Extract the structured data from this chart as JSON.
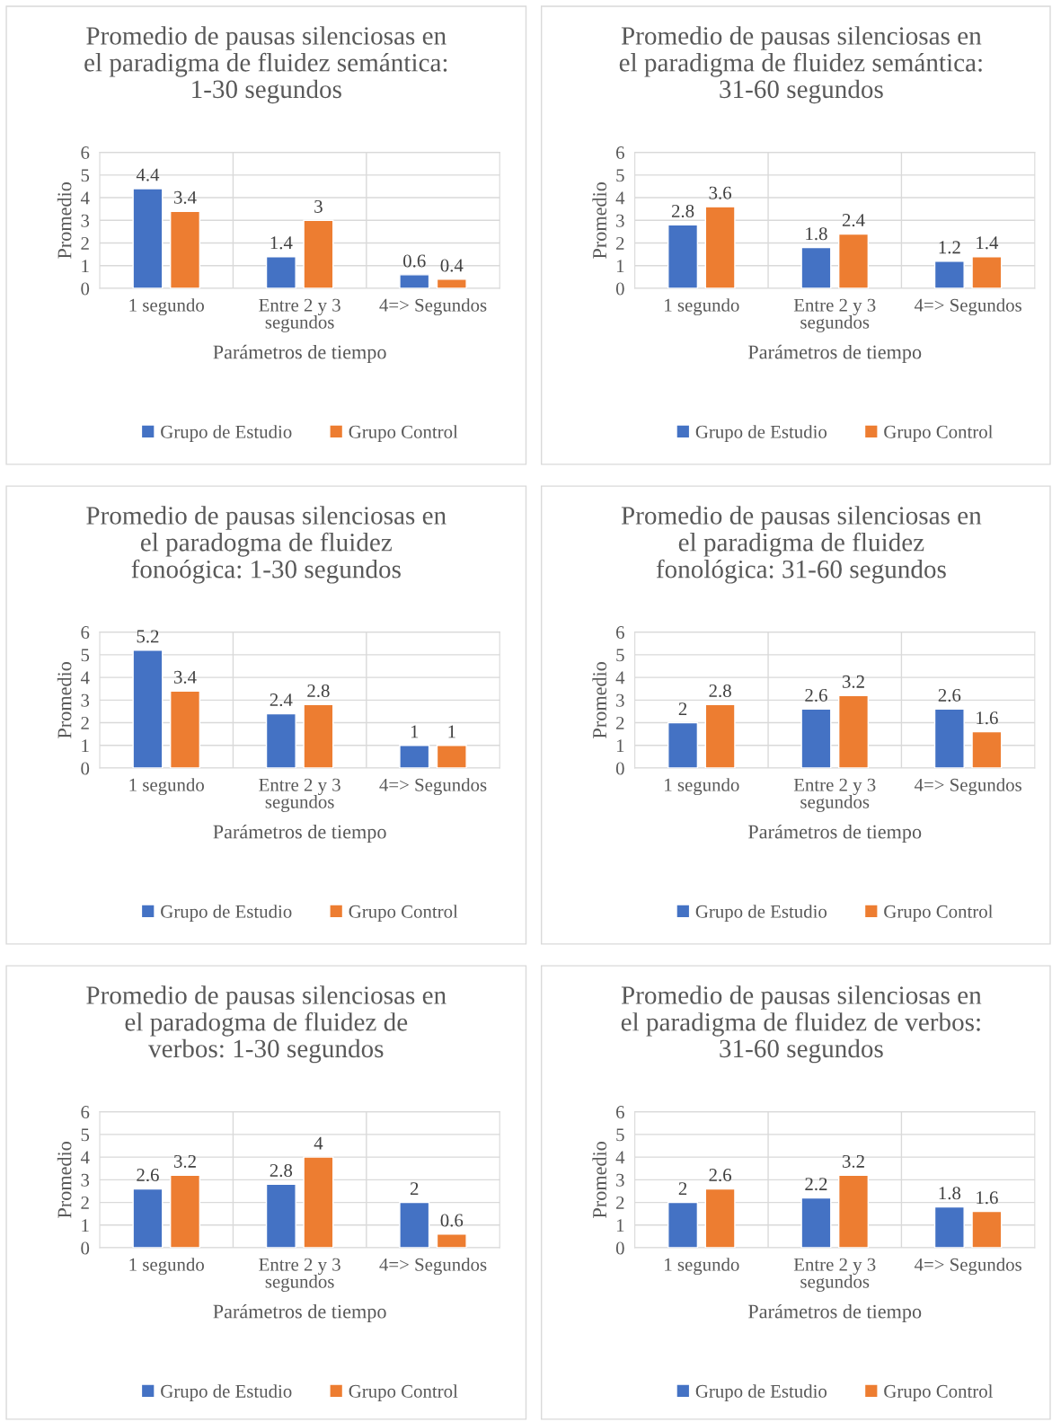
{
  "chart_data": [
    {
      "type": "bar",
      "title": "Promedio de pausas silenciosas en\nel paradigma de fluidez semántica:\n1-30 segundos",
      "xlabel": "Parámetros de tiempo",
      "ylabel": "Promedio",
      "categories": [
        "1 segundo",
        "Entre 2 y 3\nsegundos",
        "4=> Segundos"
      ],
      "series": [
        {
          "name": "Grupo de Estudio",
          "color": "#4472c4",
          "values": [
            4.4,
            1.4,
            0.6
          ]
        },
        {
          "name": "Grupo Control",
          "color": "#ed7d31",
          "values": [
            3.4,
            3,
            0.4
          ]
        }
      ],
      "ylim": [
        0,
        6
      ],
      "yticks": [
        0,
        1,
        2,
        3,
        4,
        5,
        6
      ],
      "grid": "y",
      "legend": "bottom",
      "data_labels": true
    },
    {
      "type": "bar",
      "title": "Promedio de pausas silenciosas en\nel paradigma de fluidez semántica:\n31-60 segundos",
      "xlabel": "Parámetros de tiempo",
      "ylabel": "Promedio",
      "categories": [
        "1 segundo",
        "Entre 2 y 3\nsegundos",
        "4=> Segundos"
      ],
      "series": [
        {
          "name": "Grupo de Estudio",
          "color": "#4472c4",
          "values": [
            2.8,
            1.8,
            1.2
          ]
        },
        {
          "name": "Grupo Control",
          "color": "#ed7d31",
          "values": [
            3.6,
            2.4,
            1.4
          ]
        }
      ],
      "ylim": [
        0,
        6
      ],
      "yticks": [
        0,
        1,
        2,
        3,
        4,
        5,
        6
      ],
      "grid": "y",
      "legend": "bottom",
      "data_labels": true
    },
    {
      "type": "bar",
      "title": "Promedio de pausas silenciosas en\nel paradogma de fluidez\nfonoógica: 1-30 segundos",
      "xlabel": "Parámetros de tiempo",
      "ylabel": "Promedio",
      "categories": [
        "1 segundo",
        "Entre 2 y 3\nsegundos",
        "4=> Segundos"
      ],
      "series": [
        {
          "name": "Grupo de Estudio",
          "color": "#4472c4",
          "values": [
            5.2,
            2.4,
            1
          ]
        },
        {
          "name": "Grupo Control",
          "color": "#ed7d31",
          "values": [
            3.4,
            2.8,
            1
          ]
        }
      ],
      "ylim": [
        0,
        6
      ],
      "yticks": [
        0,
        1,
        2,
        3,
        4,
        5,
        6
      ],
      "grid": "y",
      "legend": "bottom",
      "data_labels": true
    },
    {
      "type": "bar",
      "title": "Promedio de pausas silenciosas en\nel paradigma de fluidez\nfonológica: 31-60 segundos",
      "xlabel": "Parámetros de tiempo",
      "ylabel": "Promedio",
      "categories": [
        "1 segundo",
        "Entre 2 y 3\nsegundos",
        "4=> Segundos"
      ],
      "series": [
        {
          "name": "Grupo de Estudio",
          "color": "#4472c4",
          "values": [
            2,
            2.6,
            2.6
          ]
        },
        {
          "name": "Grupo Control",
          "color": "#ed7d31",
          "values": [
            2.8,
            3.2,
            1.6
          ]
        }
      ],
      "ylim": [
        0,
        6
      ],
      "yticks": [
        0,
        1,
        2,
        3,
        4,
        5,
        6
      ],
      "grid": "y",
      "legend": "bottom",
      "data_labels": true
    },
    {
      "type": "bar",
      "title": "Promedio de pausas silenciosas en\nel paradogma de fluidez de\nverbos: 1-30 segundos",
      "xlabel": "Parámetros de tiempo",
      "ylabel": "Promedio",
      "categories": [
        "1 segundo",
        "Entre 2 y 3\nsegundos",
        "4=> Segundos"
      ],
      "series": [
        {
          "name": "Grupo de Estudio",
          "color": "#4472c4",
          "values": [
            2.6,
            2.8,
            2
          ]
        },
        {
          "name": "Grupo Control",
          "color": "#ed7d31",
          "values": [
            3.2,
            4,
            0.6
          ]
        }
      ],
      "ylim": [
        0,
        6
      ],
      "yticks": [
        0,
        1,
        2,
        3,
        4,
        5,
        6
      ],
      "grid": "y",
      "legend": "bottom",
      "data_labels": true
    },
    {
      "type": "bar",
      "title": "Promedio de pausas silenciosas en\nel paradigma de fluidez de verbos:\n31-60 segundos",
      "xlabel": "Parámetros de tiempo",
      "ylabel": "Promedio",
      "categories": [
        "1 segundo",
        "Entre 2 y 3\nsegundos",
        "4=> Segundos"
      ],
      "series": [
        {
          "name": "Grupo de Estudio",
          "color": "#4472c4",
          "values": [
            2,
            2.2,
            1.8
          ]
        },
        {
          "name": "Grupo Control",
          "color": "#ed7d31",
          "values": [
            2.6,
            3.2,
            1.6
          ]
        }
      ],
      "ylim": [
        0,
        6
      ],
      "yticks": [
        0,
        1,
        2,
        3,
        4,
        5,
        6
      ],
      "grid": "y",
      "legend": "bottom",
      "data_labels": true
    }
  ]
}
